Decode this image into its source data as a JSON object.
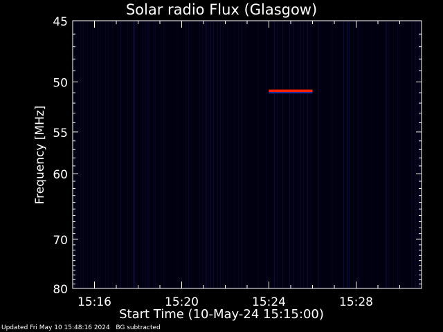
{
  "chart_data": {
    "type": "heatmap",
    "title": "Solar radio Flux (Glasgow)",
    "xlabel": "Start Time (10-May-24 15:15:00)",
    "ylabel": "Frequency [MHz]",
    "x_ticks": [
      "15:16",
      "15:20",
      "15:24",
      "15:28"
    ],
    "x_range": [
      "15:15",
      "15:31"
    ],
    "y_ticks": [
      45,
      50,
      55,
      60,
      70,
      80
    ],
    "y_range": [
      45,
      80
    ],
    "y_scale": "reciprocal",
    "background_color": "#000010",
    "features": [
      {
        "type": "narrowband_signal",
        "frequency_mhz": 50.8,
        "start": "15:24",
        "end": "15:26",
        "color": "#ff1a00"
      }
    ],
    "colors": {
      "low": "#000014",
      "high": "#ff0000",
      "frame": "#ffffff"
    }
  },
  "footer": {
    "updated": "Updated Fri May 10 15:48:16 2024",
    "note": "BG subtracted"
  }
}
